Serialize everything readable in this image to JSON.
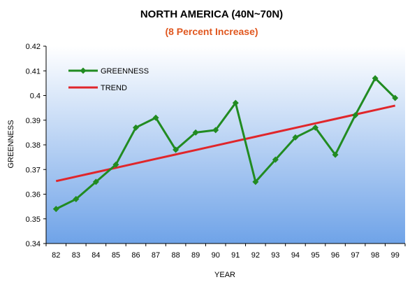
{
  "chart_data": {
    "type": "line",
    "title": "NORTH AMERICA (40N~70N)",
    "subtitle": "(8 Percent Increase)",
    "xlabel": "YEAR",
    "ylabel": "GREENNESS",
    "categories": [
      "82",
      "83",
      "84",
      "85",
      "86",
      "87",
      "88",
      "89",
      "90",
      "91",
      "92",
      "93",
      "94",
      "95",
      "96",
      "97",
      "98",
      "99"
    ],
    "ylim": [
      0.34,
      0.42
    ],
    "yticks": [
      "0.34",
      "0.35",
      "0.36",
      "0.37",
      "0.38",
      "0.39",
      "0.4",
      "0.41",
      "0.42"
    ],
    "series": [
      {
        "name": "GREENNESS",
        "values": [
          0.354,
          0.358,
          0.365,
          0.372,
          0.387,
          0.391,
          0.378,
          0.385,
          0.386,
          0.397,
          0.365,
          0.374,
          0.383,
          0.387,
          0.376,
          0.392,
          0.407,
          0.399
        ]
      },
      {
        "name": "TREND",
        "values": [
          0.3653,
          0.3671,
          0.3689,
          0.3707,
          0.3725,
          0.3743,
          0.3761,
          0.3779,
          0.3797,
          0.3815,
          0.3833,
          0.3851,
          0.3869,
          0.3887,
          0.3905,
          0.3923,
          0.3941,
          0.3959
        ]
      }
    ],
    "legend_position": "top-left",
    "grid": false
  },
  "colors": {
    "greenness": "#218B21",
    "trend": "#E0262B",
    "subtitle": "#E0571F",
    "plot_bg_top": "#FFFFFF",
    "plot_bg_bottom": "#6FA3E8"
  }
}
